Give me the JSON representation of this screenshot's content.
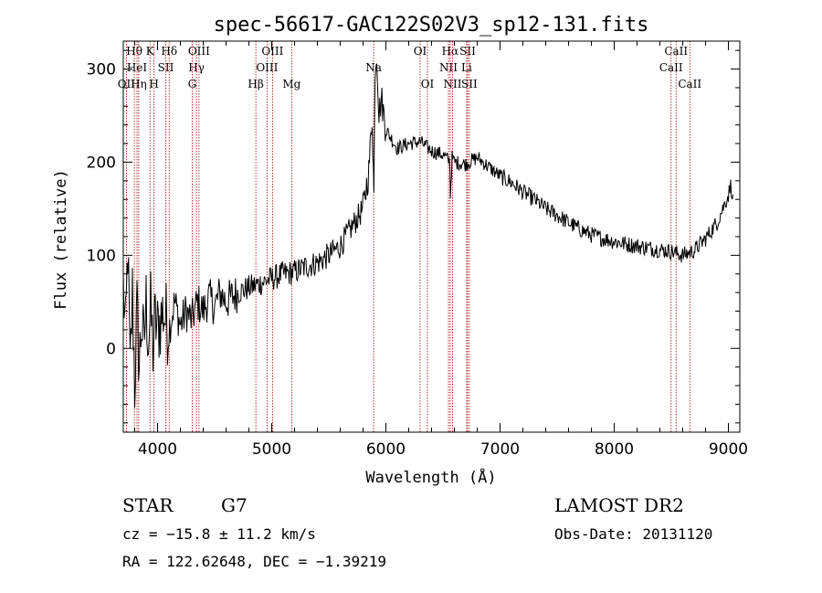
{
  "chart_data": {
    "type": "line",
    "title": "spec-56617-GAC122S02V3_sp12-131.fits",
    "xlabel": "Wavelength (Å)",
    "ylabel": "Flux (relative)",
    "xlim": [
      3700,
      9100
    ],
    "ylim": [
      -90,
      330
    ],
    "xticks": [
      4000,
      5000,
      6000,
      7000,
      8000,
      9000
    ],
    "yticks": [
      0,
      100,
      200,
      300
    ],
    "grid": false,
    "series": [
      {
        "points": [
          [
            3700,
            70
          ],
          [
            3720,
            10
          ],
          [
            3740,
            110
          ],
          [
            3760,
            -30
          ],
          [
            3780,
            60
          ],
          [
            3800,
            -40
          ],
          [
            3820,
            40
          ],
          [
            3840,
            -20
          ],
          [
            3860,
            30
          ],
          [
            3880,
            0
          ],
          [
            3900,
            50
          ],
          [
            3920,
            10
          ],
          [
            3940,
            40
          ],
          [
            3960,
            0
          ],
          [
            3980,
            30
          ],
          [
            4000,
            20
          ],
          [
            4050,
            40
          ],
          [
            4100,
            20
          ],
          [
            4150,
            50
          ],
          [
            4200,
            25
          ],
          [
            4250,
            40
          ],
          [
            4300,
            30
          ],
          [
            4350,
            50
          ],
          [
            4400,
            40
          ],
          [
            4450,
            55
          ],
          [
            4500,
            45
          ],
          [
            4550,
            60
          ],
          [
            4600,
            50
          ],
          [
            4700,
            60
          ],
          [
            4800,
            65
          ],
          [
            4900,
            70
          ],
          [
            5000,
            75
          ],
          [
            5100,
            80
          ],
          [
            5200,
            82
          ],
          [
            5300,
            88
          ],
          [
            5400,
            92
          ],
          [
            5500,
            100
          ],
          [
            5600,
            110
          ],
          [
            5700,
            130
          ],
          [
            5800,
            150
          ],
          [
            5850,
            190
          ],
          [
            5880,
            250
          ],
          [
            5895,
            165
          ],
          [
            5905,
            300
          ],
          [
            5920,
            320
          ],
          [
            5940,
            250
          ],
          [
            5960,
            270
          ],
          [
            6000,
            235
          ],
          [
            6050,
            225
          ],
          [
            6100,
            215
          ],
          [
            6200,
            220
          ],
          [
            6300,
            222
          ],
          [
            6400,
            212
          ],
          [
            6500,
            208
          ],
          [
            6560,
            200
          ],
          [
            6565,
            165
          ],
          [
            6580,
            205
          ],
          [
            6600,
            200
          ],
          [
            6700,
            198
          ],
          [
            6800,
            205
          ],
          [
            6900,
            195
          ],
          [
            7000,
            185
          ],
          [
            7100,
            178
          ],
          [
            7200,
            168
          ],
          [
            7300,
            160
          ],
          [
            7400,
            150
          ],
          [
            7500,
            143
          ],
          [
            7600,
            135
          ],
          [
            7700,
            128
          ],
          [
            7800,
            122
          ],
          [
            7900,
            118
          ],
          [
            8000,
            115
          ],
          [
            8100,
            112
          ],
          [
            8200,
            110
          ],
          [
            8300,
            108
          ],
          [
            8400,
            106
          ],
          [
            8500,
            104
          ],
          [
            8600,
            100
          ],
          [
            8700,
            105
          ],
          [
            8800,
            118
          ],
          [
            8900,
            135
          ],
          [
            8950,
            150
          ],
          [
            9000,
            165
          ],
          [
            9020,
            175
          ],
          [
            9040,
            165
          ]
        ]
      }
    ],
    "lines": [
      {
        "label": "Hθ",
        "wl": 3797,
        "row": 0
      },
      {
        "label": "OII",
        "wl": 3727,
        "row": 2
      },
      {
        "label": "HeI",
        "wl": 3820,
        "row": 1
      },
      {
        "label": "Hη",
        "wl": 3835,
        "row": 2
      },
      {
        "label": "K",
        "wl": 3934,
        "row": 0
      },
      {
        "label": "SII",
        "wl": 4072,
        "row": 1
      },
      {
        "label": "H",
        "wl": 3969,
        "row": 2
      },
      {
        "label": "Hδ",
        "wl": 4102,
        "row": 0
      },
      {
        "label": "OIII",
        "wl": 4363,
        "row": 0
      },
      {
        "label": "Hγ",
        "wl": 4341,
        "row": 1
      },
      {
        "label": "G",
        "wl": 4304,
        "row": 2
      },
      {
        "label": "Hβ",
        "wl": 4861,
        "row": 2
      },
      {
        "label": "OIII",
        "wl": 5007,
        "row": 0
      },
      {
        "label": "OIII",
        "wl": 4959,
        "row": 1
      },
      {
        "label": "Mg",
        "wl": 5175,
        "row": 2
      },
      {
        "label": "Na",
        "wl": 5893,
        "row": 1
      },
      {
        "label": "OI",
        "wl": 6300,
        "row": 0
      },
      {
        "label": "OI",
        "wl": 6364,
        "row": 2
      },
      {
        "label": "Hα",
        "wl": 6563,
        "row": 0
      },
      {
        "label": "SII",
        "wl": 6716,
        "row": 0
      },
      {
        "label": "NII",
        "wl": 6548,
        "row": 1
      },
      {
        "label": "Li",
        "wl": 6707,
        "row": 1
      },
      {
        "label": "NII",
        "wl": 6584,
        "row": 2
      },
      {
        "label": "SII",
        "wl": 6731,
        "row": 2
      },
      {
        "label": "CaII",
        "wl": 8542,
        "row": 0
      },
      {
        "label": "CaII",
        "wl": 8498,
        "row": 1
      },
      {
        "label": "CaII",
        "wl": 8662,
        "row": 2
      }
    ]
  },
  "info": {
    "class_label": "STAR",
    "subclass": "G7",
    "survey": "LAMOST DR2",
    "cz": "cz = −15.8 ± 11.2 km/s",
    "obs_date": "Obs-Date: 20131120",
    "coords": "RA = 122.62648, DEC =  −1.39219"
  }
}
